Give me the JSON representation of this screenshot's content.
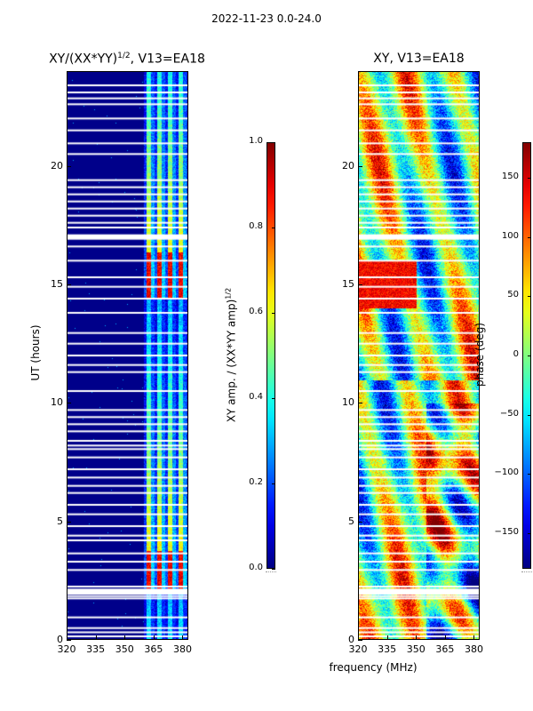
{
  "suptitle": "2022-11-23 0.0-24.0",
  "colors": {
    "navy": "#00007f",
    "white": "#ffffff"
  },
  "chart_data": [
    {
      "type": "heatmap",
      "title": "XY/(XX*YY)",
      "title_exp": "1/2",
      "title_suffix": ", V13=EA18",
      "xlabel": "",
      "ylabel": "UT (hours)",
      "xlim": [
        320,
        383
      ],
      "ylim": [
        0,
        24
      ],
      "xticks": [
        "320",
        "335",
        "350",
        "365",
        "380"
      ],
      "xtick_values": [
        320,
        335,
        350,
        365,
        380
      ],
      "yticks": [
        "0",
        "5",
        "10",
        "15",
        "20"
      ],
      "ytick_values": [
        0,
        5,
        10,
        15,
        20
      ],
      "signal_band_mhz": [
        360,
        383
      ],
      "colorbar": {
        "label": "XY amp. / (XX*YY amp)",
        "label_exp": "1/2",
        "range": [
          0.0,
          1.0
        ],
        "ticks": [
          "0.0",
          "0.2",
          "0.4",
          "0.6",
          "0.8",
          "1.0"
        ],
        "tick_values": [
          0.0,
          0.2,
          0.4,
          0.6,
          0.8,
          1.0
        ]
      },
      "flagged_hours": [
        0.15,
        0.32,
        0.5,
        0.95,
        1.75,
        1.85,
        1.95,
        2.25,
        2.95,
        3.3,
        3.65,
        4.2,
        4.4,
        4.8,
        5.3,
        5.7,
        6.2,
        6.5,
        6.85,
        7.2,
        7.7,
        8.05,
        8.2,
        8.4,
        8.8,
        9.1,
        9.4,
        9.7,
        10.5,
        11.3,
        11.6,
        12.0,
        12.5,
        12.95,
        13.8,
        14.4,
        14.9,
        15.3,
        16.0,
        16.6,
        16.95,
        17.05,
        17.4,
        17.6,
        17.9,
        18.2,
        18.5,
        18.8,
        19.1,
        19.4,
        20.5,
        20.95,
        21.5,
        22.0,
        22.6,
        22.85,
        23.1,
        23.4
      ]
    },
    {
      "type": "heatmap",
      "title": "XY, V13=EA18",
      "xlabel": "frequency (MHz)",
      "ylabel": "",
      "xlim": [
        320,
        383
      ],
      "ylim": [
        0,
        24
      ],
      "xticks": [
        "320",
        "335",
        "350",
        "365",
        "380"
      ],
      "xtick_values": [
        320,
        335,
        350,
        365,
        380
      ],
      "yticks": [
        "0",
        "5",
        "10",
        "15",
        "20"
      ],
      "ytick_values": [
        0,
        5,
        10,
        15,
        20
      ],
      "colorbar": {
        "label": "phase (deg)",
        "range": [
          -180,
          180
        ],
        "ticks": [
          "−150",
          "−100",
          "−50",
          "0",
          "50",
          "100",
          "150"
        ],
        "tick_values": [
          -150,
          -100,
          -50,
          0,
          50,
          100,
          150
        ]
      },
      "flagged_hours": [
        0.15,
        0.32,
        0.5,
        0.95,
        1.75,
        1.85,
        1.95,
        2.25,
        2.95,
        3.3,
        3.65,
        4.2,
        4.4,
        4.8,
        5.3,
        5.7,
        6.2,
        6.5,
        6.85,
        7.2,
        7.7,
        8.05,
        8.2,
        8.4,
        8.8,
        9.1,
        9.4,
        9.7,
        10.5,
        11.3,
        11.6,
        12.0,
        12.5,
        12.95,
        13.8,
        14.4,
        14.9,
        15.3,
        16.0,
        16.6,
        16.95,
        17.05,
        17.4,
        17.6,
        17.9,
        18.2,
        18.5,
        18.8,
        19.1,
        19.4,
        20.5,
        20.95,
        21.5,
        22.0,
        22.6,
        22.85,
        23.1,
        23.4
      ]
    }
  ]
}
